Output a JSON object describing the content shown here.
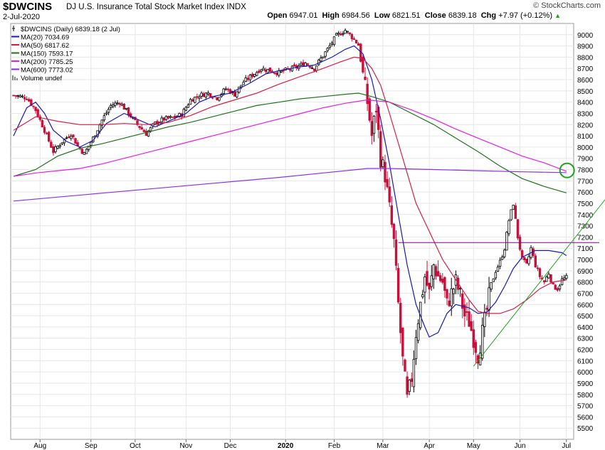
{
  "header": {
    "symbol": "$DWCINS",
    "name": "DJ U.S. Insurance Total Stock Market Index",
    "exchange": "INDX",
    "date": "2-Jul-2020",
    "brand": "© StockCharts.com",
    "open_label": "Open",
    "open": "6947.01",
    "high_label": "High",
    "high": "6984.56",
    "low_label": "Low",
    "low": "6821.51",
    "close_label": "Close",
    "close": "6839.18",
    "chg_label": "Chg",
    "chg": "+7.97 (+0.12%)",
    "chg_arrow": "▲"
  },
  "chart_data": {
    "type": "line",
    "title": "$DWCINS (Daily) 6839.18 (2 Jul)",
    "ylim": [
      5400,
      9100
    ],
    "y_ticks": [
      5500,
      5600,
      5700,
      5800,
      5900,
      6000,
      6100,
      6200,
      6300,
      6400,
      6500,
      6600,
      6700,
      6800,
      6900,
      7000,
      7100,
      7200,
      7300,
      7400,
      7500,
      7600,
      7700,
      7800,
      7900,
      8000,
      8100,
      8200,
      8300,
      8400,
      8500,
      8600,
      8700,
      8800,
      8900,
      9000
    ],
    "x_month_labels": [
      "Aug",
      "Sep",
      "Oct",
      "Nov",
      "Dec",
      "2020",
      "Feb",
      "Mar",
      "Apr",
      "May",
      "Jun",
      "Jul"
    ],
    "x_month_index": [
      12,
      35,
      55,
      78,
      98,
      123,
      145,
      167,
      188,
      208,
      229,
      250
    ],
    "n_days": 252,
    "legend": [
      {
        "label": "$DWCINS (Daily) 6839.18 (2 Jul)",
        "color": "#000000",
        "type": "price"
      },
      {
        "label": "MA(20) 7034.69",
        "color": "#1a1aa8",
        "type": "line"
      },
      {
        "label": "MA(50) 6817.62",
        "color": "#d0204a",
        "type": "line"
      },
      {
        "label": "MA(150) 7593.17",
        "color": "#207020",
        "type": "line"
      },
      {
        "label": "MA(200) 7785.25",
        "color": "#e020e0",
        "type": "line"
      },
      {
        "label": "MA(600) 7773.02",
        "color": "#8a30e0",
        "type": "line"
      },
      {
        "label": "Volume undef",
        "color": "#888888",
        "type": "volume"
      }
    ],
    "price_path": [
      [
        0,
        8460
      ],
      [
        6,
        8440
      ],
      [
        10,
        8330
      ],
      [
        14,
        8150
      ],
      [
        18,
        7960
      ],
      [
        22,
        8050
      ],
      [
        26,
        8120
      ],
      [
        29,
        8010
      ],
      [
        32,
        7940
      ],
      [
        36,
        8080
      ],
      [
        40,
        8240
      ],
      [
        44,
        8370
      ],
      [
        48,
        8400
      ],
      [
        52,
        8300
      ],
      [
        56,
        8200
      ],
      [
        60,
        8120
      ],
      [
        64,
        8210
      ],
      [
        68,
        8250
      ],
      [
        72,
        8260
      ],
      [
        76,
        8290
      ],
      [
        80,
        8420
      ],
      [
        84,
        8460
      ],
      [
        88,
        8480
      ],
      [
        92,
        8440
      ],
      [
        96,
        8520
      ],
      [
        100,
        8470
      ],
      [
        104,
        8580
      ],
      [
        108,
        8640
      ],
      [
        112,
        8700
      ],
      [
        116,
        8680
      ],
      [
        120,
        8660
      ],
      [
        124,
        8690
      ],
      [
        128,
        8710
      ],
      [
        132,
        8750
      ],
      [
        136,
        8700
      ],
      [
        138,
        8760
      ],
      [
        142,
        8870
      ],
      [
        146,
        8990
      ],
      [
        150,
        9040
      ],
      [
        154,
        8960
      ],
      [
        156,
        8910
      ],
      [
        158,
        8640
      ],
      [
        160,
        8400
      ],
      [
        162,
        8100
      ],
      [
        164,
        8350
      ],
      [
        166,
        7900
      ],
      [
        168,
        7750
      ],
      [
        170,
        7450
      ],
      [
        172,
        7150
      ],
      [
        174,
        6600
      ],
      [
        176,
        6100
      ],
      [
        178,
        5750
      ],
      [
        180,
        5950
      ],
      [
        182,
        6350
      ],
      [
        184,
        6600
      ],
      [
        186,
        6850
      ],
      [
        188,
        6700
      ],
      [
        190,
        6950
      ],
      [
        192,
        6850
      ],
      [
        194,
        6800
      ],
      [
        196,
        6600
      ],
      [
        198,
        6700
      ],
      [
        200,
        6800
      ],
      [
        202,
        6680
      ],
      [
        204,
        6500
      ],
      [
        206,
        6450
      ],
      [
        208,
        6300
      ],
      [
        210,
        6150
      ],
      [
        212,
        6350
      ],
      [
        214,
        6550
      ],
      [
        216,
        6780
      ],
      [
        218,
        6900
      ],
      [
        220,
        6980
      ],
      [
        222,
        7100
      ],
      [
        224,
        7350
      ],
      [
        226,
        7500
      ],
      [
        228,
        7200
      ],
      [
        230,
        7000
      ],
      [
        232,
        6950
      ],
      [
        234,
        7100
      ],
      [
        236,
        6950
      ],
      [
        238,
        6850
      ],
      [
        240,
        6800
      ],
      [
        242,
        6880
      ],
      [
        244,
        6760
      ],
      [
        246,
        6740
      ],
      [
        248,
        6820
      ],
      [
        250,
        6839
      ]
    ],
    "series": [
      {
        "name": "MA(20)",
        "color": "#1a1aa8",
        "points": [
          [
            0,
            8100
          ],
          [
            6,
            8350
          ],
          [
            10,
            8400
          ],
          [
            14,
            8300
          ],
          [
            18,
            8150
          ],
          [
            24,
            8050
          ],
          [
            30,
            8000
          ],
          [
            36,
            8060
          ],
          [
            42,
            8210
          ],
          [
            50,
            8300
          ],
          [
            58,
            8230
          ],
          [
            64,
            8180
          ],
          [
            70,
            8230
          ],
          [
            78,
            8300
          ],
          [
            84,
            8400
          ],
          [
            90,
            8450
          ],
          [
            98,
            8480
          ],
          [
            106,
            8560
          ],
          [
            114,
            8650
          ],
          [
            120,
            8680
          ],
          [
            128,
            8710
          ],
          [
            136,
            8730
          ],
          [
            144,
            8800
          ],
          [
            150,
            8870
          ],
          [
            154,
            8900
          ],
          [
            158,
            8830
          ],
          [
            162,
            8600
          ],
          [
            166,
            8250
          ],
          [
            170,
            7850
          ],
          [
            174,
            7400
          ],
          [
            178,
            6950
          ],
          [
            182,
            6600
          ],
          [
            186,
            6400
          ],
          [
            188,
            6310
          ],
          [
            192,
            6350
          ],
          [
            196,
            6520
          ],
          [
            200,
            6600
          ],
          [
            206,
            6570
          ],
          [
            210,
            6520
          ],
          [
            214,
            6530
          ],
          [
            218,
            6620
          ],
          [
            222,
            6760
          ],
          [
            226,
            6920
          ],
          [
            230,
            7020
          ],
          [
            236,
            7080
          ],
          [
            242,
            7080
          ],
          [
            248,
            7060
          ],
          [
            250,
            7035
          ]
        ]
      },
      {
        "name": "MA(50)",
        "color": "#d0204a",
        "points": [
          [
            0,
            8150
          ],
          [
            10,
            8270
          ],
          [
            20,
            8230
          ],
          [
            30,
            8200
          ],
          [
            40,
            8200
          ],
          [
            50,
            8210
          ],
          [
            60,
            8200
          ],
          [
            70,
            8220
          ],
          [
            80,
            8280
          ],
          [
            90,
            8360
          ],
          [
            100,
            8420
          ],
          [
            110,
            8480
          ],
          [
            120,
            8560
          ],
          [
            130,
            8630
          ],
          [
            140,
            8700
          ],
          [
            148,
            8760
          ],
          [
            154,
            8800
          ],
          [
            158,
            8790
          ],
          [
            162,
            8700
          ],
          [
            166,
            8550
          ],
          [
            170,
            8300
          ],
          [
            176,
            7900
          ],
          [
            182,
            7500
          ],
          [
            188,
            7250
          ],
          [
            194,
            7000
          ],
          [
            200,
            6820
          ],
          [
            206,
            6640
          ],
          [
            210,
            6540
          ],
          [
            214,
            6520
          ],
          [
            220,
            6520
          ],
          [
            226,
            6560
          ],
          [
            232,
            6640
          ],
          [
            238,
            6740
          ],
          [
            244,
            6800
          ],
          [
            250,
            6818
          ]
        ]
      },
      {
        "name": "MA(150)",
        "color": "#207020",
        "points": [
          [
            0,
            7740
          ],
          [
            10,
            7800
          ],
          [
            20,
            7920
          ],
          [
            30,
            7990
          ],
          [
            40,
            8030
          ],
          [
            50,
            8080
          ],
          [
            60,
            8130
          ],
          [
            70,
            8180
          ],
          [
            80,
            8220
          ],
          [
            90,
            8270
          ],
          [
            100,
            8320
          ],
          [
            110,
            8370
          ],
          [
            120,
            8400
          ],
          [
            130,
            8430
          ],
          [
            140,
            8450
          ],
          [
            150,
            8470
          ],
          [
            156,
            8480
          ],
          [
            162,
            8450
          ],
          [
            170,
            8400
          ],
          [
            180,
            8300
          ],
          [
            190,
            8200
          ],
          [
            200,
            8080
          ],
          [
            210,
            7960
          ],
          [
            220,
            7830
          ],
          [
            230,
            7720
          ],
          [
            240,
            7650
          ],
          [
            250,
            7593
          ]
        ]
      },
      {
        "name": "MA(200)",
        "color": "#e020e0",
        "points": [
          [
            0,
            7740
          ],
          [
            10,
            7770
          ],
          [
            20,
            7790
          ],
          [
            30,
            7810
          ],
          [
            40,
            7850
          ],
          [
            50,
            7900
          ],
          [
            60,
            7950
          ],
          [
            70,
            8000
          ],
          [
            80,
            8050
          ],
          [
            90,
            8100
          ],
          [
            100,
            8150
          ],
          [
            110,
            8200
          ],
          [
            120,
            8250
          ],
          [
            130,
            8300
          ],
          [
            140,
            8350
          ],
          [
            150,
            8390
          ],
          [
            160,
            8420
          ],
          [
            170,
            8400
          ],
          [
            180,
            8330
          ],
          [
            190,
            8250
          ],
          [
            200,
            8160
          ],
          [
            210,
            8080
          ],
          [
            220,
            8000
          ],
          [
            230,
            7920
          ],
          [
            240,
            7860
          ],
          [
            250,
            7785
          ]
        ]
      },
      {
        "name": "MA(600)",
        "color": "#8a30e0",
        "points": [
          [
            0,
            7520
          ],
          [
            40,
            7590
          ],
          [
            80,
            7660
          ],
          [
            120,
            7730
          ],
          [
            140,
            7770
          ],
          [
            160,
            7810
          ],
          [
            170,
            7810
          ],
          [
            190,
            7800
          ],
          [
            210,
            7790
          ],
          [
            230,
            7780
          ],
          [
            250,
            7773
          ]
        ]
      }
    ],
    "annotations": [
      {
        "type": "hline",
        "color": "#800080",
        "x_start": 174,
        "x_end": 252,
        "y": 7150
      },
      {
        "type": "trendline",
        "color": "#20a020",
        "x_start": 208,
        "y_start": 6050,
        "x_end": 254,
        "y_end": 7550
      },
      {
        "type": "circle",
        "color": "#20a020",
        "x": 249,
        "y": 7780
      }
    ]
  }
}
